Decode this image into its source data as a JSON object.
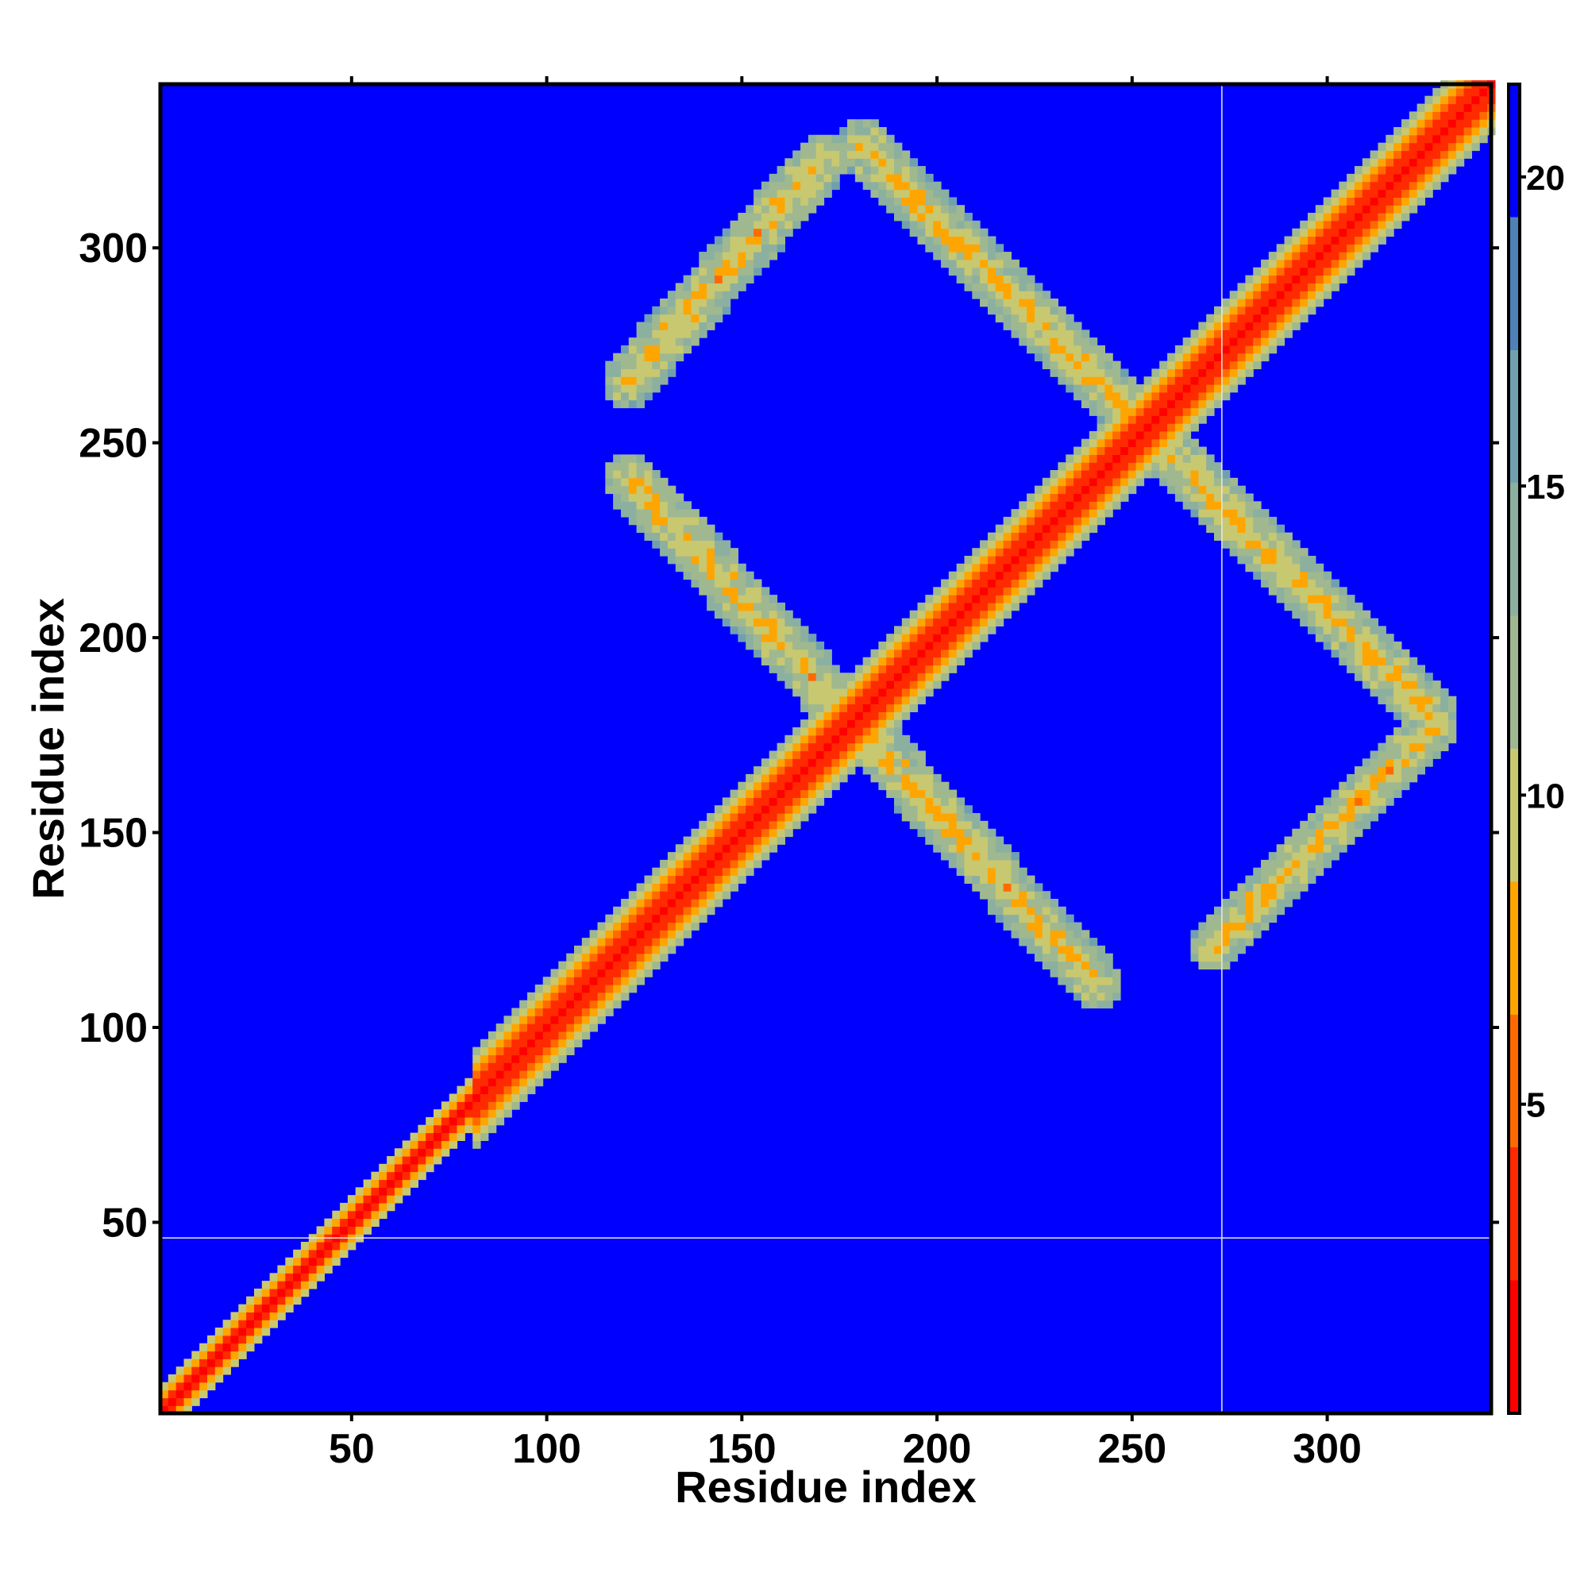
{
  "chart_data": {
    "type": "heatmap",
    "title": "",
    "xlabel": "Residue index",
    "ylabel": "Residue index",
    "xlim": [
      1,
      342
    ],
    "ylim": [
      1,
      342
    ],
    "x_ticks": [
      50,
      100,
      150,
      200,
      250,
      300
    ],
    "y_ticks": [
      50,
      100,
      150,
      200,
      250,
      300
    ],
    "colorbar": {
      "ticks": [
        5,
        10,
        15,
        20
      ],
      "range": [
        0,
        21.5
      ],
      "colors": [
        "#ff0000",
        "#ff2a00",
        "#ff6a00",
        "#ffa500",
        "#c8c870",
        "#a0b890",
        "#8cb0a0",
        "#70a0b0",
        "#5080b8",
        "#0000ff"
      ]
    },
    "background_value": 21.5,
    "features": {
      "main_diagonal": {
        "from": 1,
        "to": 342
      },
      "antiparallel_bands": [
        {
          "x_from": 120,
          "y_from": 240,
          "x_to": 240,
          "y_to": 110
        },
        {
          "x_from": 180,
          "y_from": 325,
          "x_to": 325,
          "y_to": 180
        }
      ],
      "parallel_bands": [
        {
          "x_from": 120,
          "y_from": 265,
          "x_to": 170,
          "y_to": 322
        },
        {
          "x_from": 270,
          "y_from": 120,
          "x_to": 325,
          "y_to": 175
        }
      ]
    },
    "reference_lines": {
      "x": 273,
      "y": 46
    }
  }
}
